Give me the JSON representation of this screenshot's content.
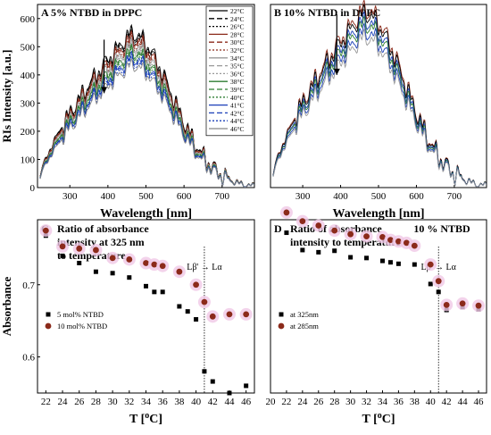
{
  "chart_data": [
    {
      "id": "A",
      "type": "line",
      "panel_label": "A",
      "title": "5% NTBD in DPPC",
      "xlabel": "Wavelength [nm]",
      "ylabel": "RIs Intensity [a.u.]",
      "xlim": [
        215,
        785
      ],
      "ylim": [
        0,
        650
      ],
      "xticks": [
        300,
        400,
        500,
        600,
        700
      ],
      "yticks": [
        0,
        100,
        200,
        300,
        400,
        500,
        600
      ],
      "legend_position": "top-right",
      "arrow_x": 390,
      "arrow_y_from": 525,
      "arrow_y_to": 335,
      "series": [
        {
          "name": "22°C",
          "color": "#000000",
          "dash": "",
          "peak": 555
        },
        {
          "name": "24°C",
          "color": "#000000",
          "dash": "6,3",
          "peak": 548
        },
        {
          "name": "26°C",
          "color": "#000000",
          "dash": "2,2",
          "peak": 541
        },
        {
          "name": "28°C",
          "color": "#8b2a1a",
          "dash": "",
          "peak": 535
        },
        {
          "name": "30°C",
          "color": "#8b2a1a",
          "dash": "6,3",
          "peak": 527
        },
        {
          "name": "32°C",
          "color": "#8b2a1a",
          "dash": "2,2",
          "peak": 519
        },
        {
          "name": "34°C",
          "color": "#999999",
          "dash": "",
          "peak": 512
        },
        {
          "name": "35°C",
          "color": "#999999",
          "dash": "6,3",
          "peak": 504
        },
        {
          "name": "36°C",
          "color": "#999999",
          "dash": "2,2",
          "peak": 496
        },
        {
          "name": "38°C",
          "color": "#2e7d32",
          "dash": "",
          "peak": 489
        },
        {
          "name": "39°C",
          "color": "#2e7d32",
          "dash": "6,3",
          "peak": 482
        },
        {
          "name": "40°C",
          "color": "#2e7d32",
          "dash": "2,2",
          "peak": 474
        },
        {
          "name": "41°C",
          "color": "#1a3fb8",
          "dash": "",
          "peak": 465
        },
        {
          "name": "42°C",
          "color": "#1a3fb8",
          "dash": "6,3",
          "peak": 458
        },
        {
          "name": "44°C",
          "color": "#1a3fb8",
          "dash": "2,2",
          "peak": 450
        },
        {
          "name": "46°C",
          "color": "#888888",
          "dash": "",
          "peak": 440
        }
      ]
    },
    {
      "id": "B",
      "type": "line",
      "panel_label": "B",
      "title": "10% NTBD in DPPC",
      "xlabel": "Wavelength [nm]",
      "ylabel": "",
      "xlim": [
        215,
        785
      ],
      "ylim": [
        0,
        650
      ],
      "xticks": [
        300,
        400,
        500,
        600,
        700
      ],
      "yticks": [],
      "arrow_x": 390,
      "arrow_y_from": 615,
      "arrow_y_to": 400,
      "series": [
        {
          "color": "#8b2a1a",
          "dash": "",
          "peak": 640
        },
        {
          "color": "#000000",
          "dash": "",
          "peak": 625
        },
        {
          "color": "#1a3fb8",
          "dash": "",
          "peak": 600
        },
        {
          "color": "#2e7d32",
          "dash": "",
          "peak": 585
        },
        {
          "color": "#1a3fb8",
          "dash": "",
          "peak": 560
        },
        {
          "color": "#999999",
          "dash": "",
          "peak": 540
        }
      ]
    },
    {
      "id": "C",
      "type": "scatter",
      "panel_label": "C",
      "title": "Ratio of absorbance intensity at 325 nm to temperature",
      "title_lines": [
        "Ratio of absorbance",
        "intensity at 325 nm",
        "to temperature"
      ],
      "xlabel": "T [°C]",
      "ylabel": "Absorbance",
      "xlim": [
        21,
        47
      ],
      "ylim": [
        0.55,
        0.79
      ],
      "xticks": [
        22,
        24,
        26,
        28,
        30,
        32,
        34,
        36,
        38,
        40,
        42,
        44,
        46
      ],
      "yticks": [
        0.6,
        0.7
      ],
      "transition_x": 41,
      "transition_label": "Lβ' → Lα",
      "legend_position": "lower-left",
      "series": [
        {
          "name": "5 mol% NTBD",
          "marker": "square",
          "color": "#000000",
          "x": [
            22,
            24,
            26,
            28,
            30,
            32,
            34,
            35,
            36,
            38,
            39,
            40,
            41,
            42,
            44,
            46
          ],
          "y": [
            0.768,
            0.74,
            0.73,
            0.718,
            0.716,
            0.71,
            0.698,
            0.69,
            0.69,
            0.67,
            0.663,
            0.652,
            0.58,
            0.566,
            0.55,
            0.56
          ]
        },
        {
          "name": "10 mol% NTBD",
          "marker": "circle",
          "color": "#8b2a1a",
          "x": [
            22,
            24,
            26,
            28,
            30,
            32,
            34,
            35,
            36,
            38,
            40,
            41,
            42,
            44,
            46
          ],
          "y": [
            0.775,
            0.753,
            0.75,
            0.748,
            0.737,
            0.735,
            0.73,
            0.728,
            0.726,
            0.718,
            0.7,
            0.676,
            0.656,
            0.659,
            0.659
          ]
        }
      ]
    },
    {
      "id": "D",
      "type": "scatter",
      "panel_label": "D",
      "title": "Ratio of absorbance intensity to temperature",
      "title_lines": [
        "Ratio of absorbance",
        "intensity to temperature"
      ],
      "extra_label": "10 % NTBD",
      "xlabel": "T [°C]",
      "ylabel": "",
      "xlim": [
        20,
        47
      ],
      "ylim": [
        0.55,
        0.79
      ],
      "xticks": [
        20,
        22,
        24,
        26,
        28,
        30,
        32,
        34,
        36,
        38,
        40,
        42,
        44,
        46
      ],
      "yticks": [],
      "transition_x": 41,
      "transition_label": "Lβ' → Lα",
      "legend_position": "lower-left",
      "series": [
        {
          "name": "at 325nm",
          "marker": "square",
          "color": "#000000",
          "x": [
            22,
            24,
            26,
            28,
            30,
            32,
            34,
            35,
            36,
            38,
            40,
            41,
            42,
            44,
            46
          ],
          "y": [
            0.772,
            0.748,
            0.745,
            0.747,
            0.738,
            0.737,
            0.733,
            0.731,
            0.729,
            0.728,
            0.701,
            0.69,
            0.665,
            0.669,
            0.666
          ]
        },
        {
          "name": "at 285nm",
          "marker": "circle",
          "color": "#8b2a1a",
          "x": [
            22,
            24,
            26,
            28,
            30,
            32,
            34,
            35,
            36,
            37,
            38,
            40,
            41,
            42,
            44,
            46
          ],
          "y": [
            0.8,
            0.788,
            0.782,
            0.775,
            0.77,
            0.767,
            0.766,
            0.762,
            0.76,
            0.758,
            0.754,
            0.728,
            0.705,
            0.672,
            0.674,
            0.671
          ]
        }
      ]
    }
  ]
}
